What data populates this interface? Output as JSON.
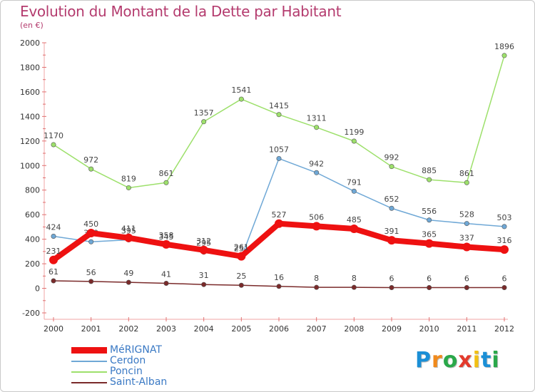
{
  "title": "Evolution du Montant de la Dette par Habitant",
  "subtitle": "(en €)",
  "logo": {
    "letters": [
      "P",
      "r",
      "o",
      "x",
      "i",
      "t",
      "i"
    ],
    "colors": [
      "#1b8fd6",
      "#f08a1c",
      "#2aa84a",
      "#e33a2c",
      "#f2c014",
      "#1b8fd6",
      "#2aa84a"
    ]
  },
  "chart_data": {
    "type": "line",
    "title": "Evolution du Montant de la Dette par Habitant",
    "subtitle": "(en €)",
    "categories": [
      "2000",
      "2001",
      "2002",
      "2003",
      "2004",
      "2005",
      "2006",
      "2007",
      "2008",
      "2009",
      "2010",
      "2011",
      "2012"
    ],
    "ylim": [
      -200,
      2000
    ],
    "yticks": [
      -200,
      0,
      200,
      400,
      600,
      800,
      1000,
      1200,
      1400,
      1600,
      1800,
      2000
    ],
    "grid": false,
    "legend": "bottom-left",
    "series": [
      {
        "name": "MéRIGNAT",
        "color": "#ee1111",
        "width": 8,
        "values": [
          231,
          450,
          411,
          358,
          312,
          261,
          527,
          506,
          485,
          391,
          365,
          337,
          316
        ]
      },
      {
        "name": "Cerdon",
        "color": "#6fa8d6",
        "width": 1.5,
        "values": [
          424,
          379,
          395,
          345,
          295,
          251,
          1057,
          942,
          791,
          652,
          556,
          528,
          503
        ]
      },
      {
        "name": "Poncin",
        "color": "#9de06b",
        "width": 1.5,
        "values": [
          1170,
          972,
          819,
          861,
          1357,
          1541,
          1415,
          1311,
          1199,
          992,
          885,
          861,
          1896
        ]
      },
      {
        "name": "Saint-Alban",
        "color": "#7a2a2a",
        "width": 1.5,
        "values": [
          61,
          56,
          49,
          41,
          31,
          25,
          16,
          8,
          8,
          6,
          6,
          6,
          6
        ]
      }
    ]
  }
}
